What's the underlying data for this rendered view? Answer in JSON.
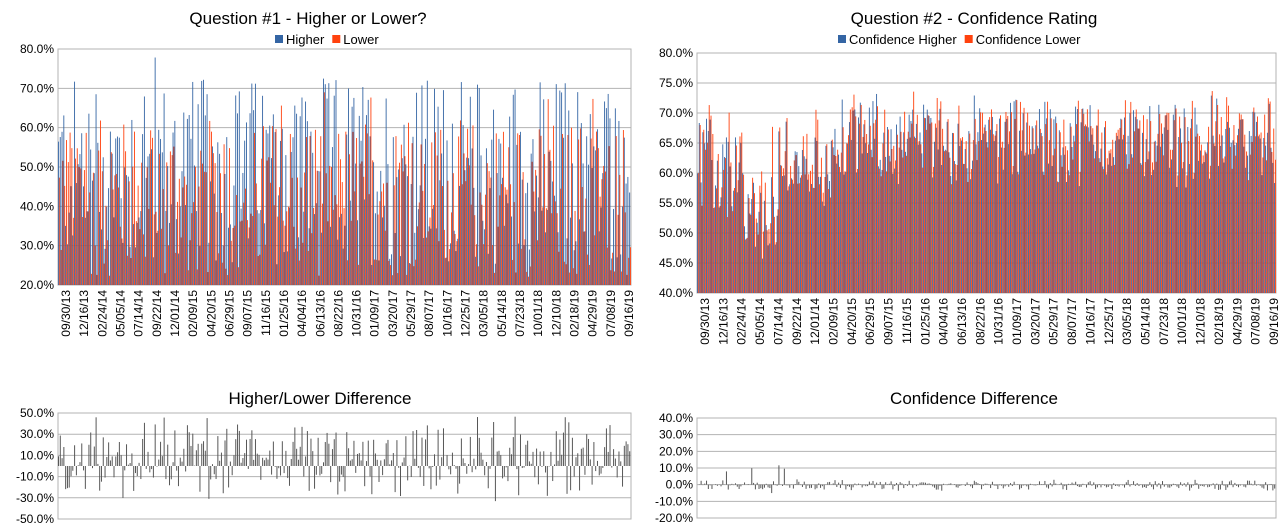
{
  "colors": {
    "higher": "#3465a4",
    "lower": "#ff420e",
    "diff": "#555555",
    "grid": "#b3b3b3",
    "plot_border": "#b3b3b3"
  },
  "chart_data": [
    {
      "id": "q1",
      "type": "bar",
      "title": "Question #1 - Higher or Lower?",
      "legend_position": "top-right",
      "series": [
        {
          "name": "Higher",
          "color": "#3465a4"
        },
        {
          "name": "Lower",
          "color": "#ff420e"
        }
      ],
      "ylim": [
        20,
        80
      ],
      "yticks": [
        "80.0%",
        "70.0%",
        "60.0%",
        "50.0%",
        "40.0%",
        "30.0%",
        "20.0%"
      ],
      "xticks": [
        "09/30/13",
        "12/16/13",
        "02/24/14",
        "05/05/14",
        "07/14/14",
        "09/22/14",
        "12/01/14",
        "02/09/15",
        "04/20/15",
        "06/29/15",
        "09/07/15",
        "11/16/15",
        "01/25/16",
        "04/04/16",
        "06/13/16",
        "08/22/16",
        "10/31/16",
        "01/09/17",
        "03/20/17",
        "05/29/17",
        "08/07/17",
        "10/16/17",
        "12/25/17",
        "03/05/18",
        "05/14/18",
        "07/23/18",
        "10/01/18",
        "12/10/18",
        "02/18/19",
        "04/29/19",
        "07/08/19",
        "09/16/19"
      ],
      "n_points": 320,
      "grid": true
    },
    {
      "id": "q2",
      "type": "bar",
      "title": "Question #2 - Confidence Rating",
      "legend_position": "top-right",
      "series": [
        {
          "name": "Confidence Higher",
          "color": "#3465a4"
        },
        {
          "name": "Confidence Lower",
          "color": "#ff420e"
        }
      ],
      "ylim": [
        40,
        80
      ],
      "yticks": [
        "80.0%",
        "75.0%",
        "70.0%",
        "65.0%",
        "60.0%",
        "55.0%",
        "50.0%",
        "45.0%",
        "40.0%"
      ],
      "xticks": [
        "09/30/13",
        "12/16/13",
        "02/24/14",
        "05/05/14",
        "07/14/14",
        "09/22/14",
        "12/01/14",
        "02/09/15",
        "04/20/15",
        "06/29/15",
        "09/07/15",
        "11/16/15",
        "01/25/16",
        "04/04/16",
        "06/13/16",
        "08/22/16",
        "10/31/16",
        "01/09/17",
        "03/20/17",
        "05/29/17",
        "08/07/17",
        "10/16/17",
        "12/25/17",
        "03/05/18",
        "05/14/18",
        "07/23/18",
        "10/01/18",
        "12/10/18",
        "02/18/19",
        "04/29/19",
        "07/08/19",
        "09/16/19"
      ],
      "n_points": 320,
      "grid": true
    },
    {
      "id": "d1",
      "type": "bar",
      "title": "Higher/Lower Difference",
      "ylim": [
        -50,
        50
      ],
      "yticks": [
        "50.0%",
        "30.0%",
        "10.0%",
        "-10.0%",
        "-30.0%",
        "-50.0%"
      ],
      "n_points": 320,
      "grid": true
    },
    {
      "id": "d2",
      "type": "bar",
      "title": "Confidence Difference",
      "ylim": [
        -20,
        40
      ],
      "yticks": [
        "40.0%",
        "30.0%",
        "20.0%",
        "10.0%",
        "0.0%",
        "-10.0%",
        "-20.0%"
      ],
      "n_points": 320,
      "grid": true
    }
  ]
}
